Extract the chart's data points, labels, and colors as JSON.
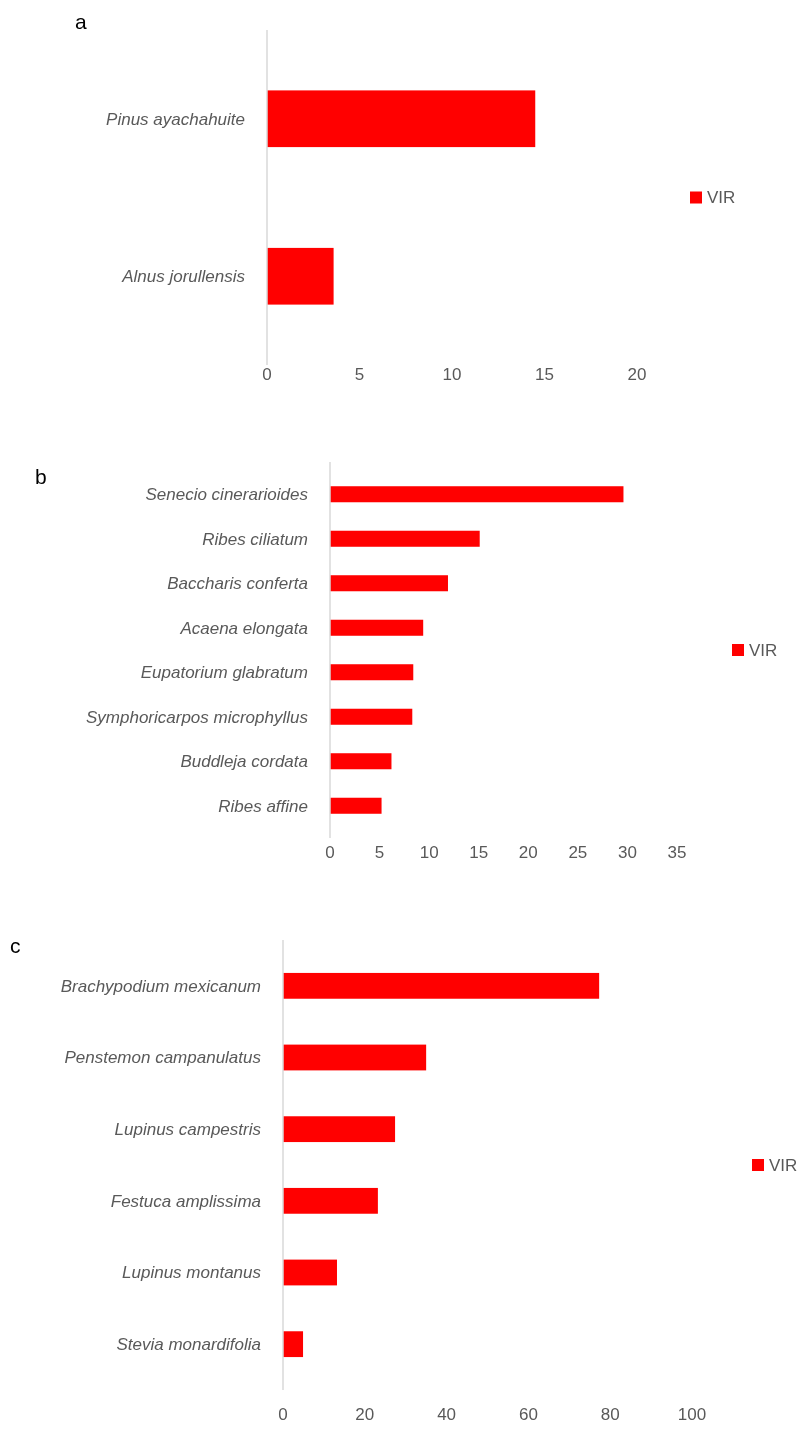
{
  "chart_data": [
    {
      "type": "bar",
      "title": "a",
      "orientation": "horizontal",
      "categories": [
        "Pinus ayachahuite",
        "Alnus jorullensis"
      ],
      "series": [
        {
          "name": "VIR",
          "color": "#ff0000",
          "values": [
            14.5,
            3.6
          ]
        }
      ],
      "xlim": [
        0,
        20
      ],
      "xticks": [
        0,
        5,
        10,
        15,
        20
      ],
      "legend": "right"
    },
    {
      "type": "bar",
      "title": "b",
      "orientation": "horizontal",
      "categories": [
        "Senecio cinerarioides",
        "Ribes ciliatum",
        "Baccharis conferta",
        "Acaena elongata",
        "Eupatorium glabratum",
        "Symphoricarpos microphyllus",
        "Buddleja cordata",
        "Ribes affine"
      ],
      "series": [
        {
          "name": "VIR",
          "color": "#ff0000",
          "values": [
            29.6,
            15.1,
            11.9,
            9.4,
            8.4,
            8.3,
            6.2,
            5.2
          ]
        }
      ],
      "xlim": [
        0,
        35
      ],
      "xticks": [
        0,
        5,
        10,
        15,
        20,
        25,
        30,
        35
      ],
      "legend": "right"
    },
    {
      "type": "bar",
      "title": "c",
      "orientation": "horizontal",
      "categories": [
        "Brachypodium mexicanum",
        "Penstemon campanulatus",
        "Lupinus campestris",
        "Festuca amplissima",
        "Lupinus montanus",
        "Stevia  monardifolia"
      ],
      "series": [
        {
          "name": "VIR",
          "color": "#ff0000",
          "values": [
            77.3,
            35.0,
            27.4,
            23.2,
            13.2,
            4.9
          ]
        }
      ],
      "xlim": [
        0,
        100
      ],
      "xticks": [
        0,
        20,
        40,
        60,
        80,
        100
      ],
      "legend": "right"
    }
  ]
}
